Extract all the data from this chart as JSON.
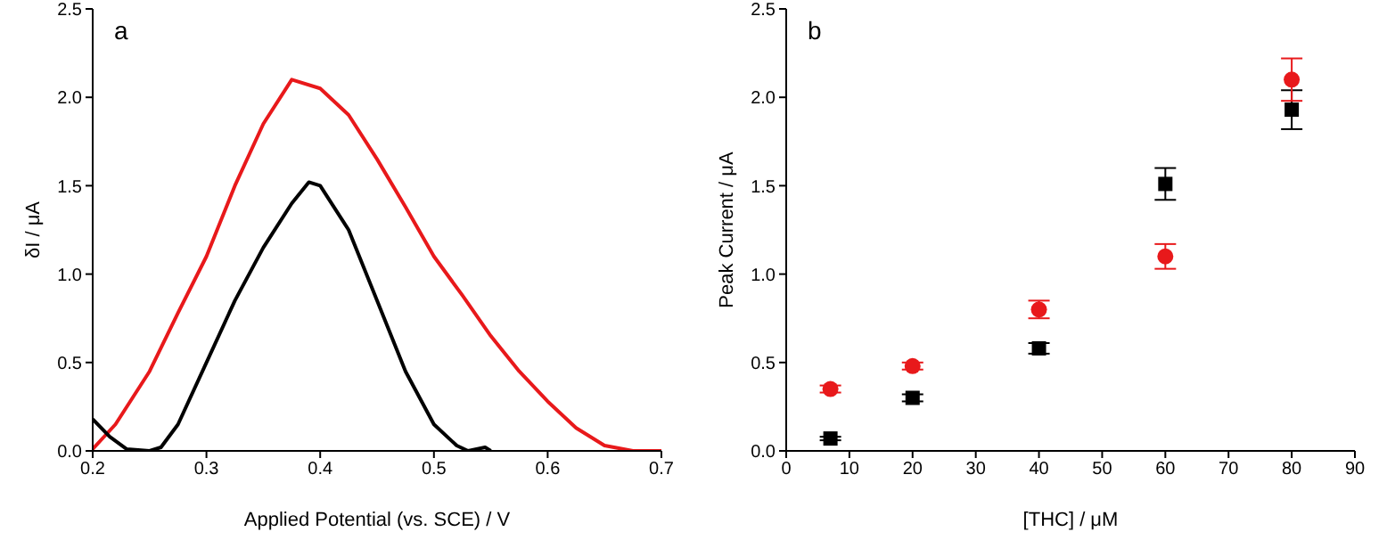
{
  "chart_data": [
    {
      "type": "line",
      "title": "a",
      "xlabel": "Applied Potential (vs. SCE) / V",
      "ylabel": "δI / μA",
      "marker": "none",
      "grid": false,
      "legend": false,
      "xlim": [
        0.2,
        0.7
      ],
      "xticks": [
        0.2,
        0.3,
        0.4,
        0.5,
        0.6,
        0.7
      ],
      "ylim": [
        0,
        2.5
      ],
      "yticks": [
        {
          "value": 0,
          "label": "0.0"
        },
        0.5,
        {
          "value": 1,
          "label": "1.0"
        },
        1.5,
        {
          "value": 2,
          "label": "2.0"
        },
        2.5
      ],
      "series": [
        {
          "color": "#e8191b",
          "x": [
            0.2,
            0.22,
            0.25,
            0.275,
            0.3,
            0.325,
            0.35,
            0.375,
            0.4,
            0.425,
            0.45,
            0.475,
            0.5,
            0.525,
            0.55,
            0.575,
            0.6,
            0.625,
            0.65,
            0.675,
            0.7
          ],
          "values": [
            0.01,
            0.15,
            0.45,
            0.78,
            1.1,
            1.5,
            1.85,
            2.1,
            2.05,
            1.9,
            1.65,
            1.38,
            1.1,
            0.88,
            0.65,
            0.45,
            0.28,
            0.13,
            0.03,
            0.0,
            0.0
          ]
        },
        {
          "color": "#000000",
          "x": [
            0.2,
            0.215,
            0.23,
            0.25,
            0.26,
            0.275,
            0.3,
            0.325,
            0.35,
            0.375,
            0.39,
            0.4,
            0.425,
            0.45,
            0.475,
            0.5,
            0.52,
            0.53,
            0.545,
            0.55
          ],
          "values": [
            0.18,
            0.08,
            0.01,
            0.0,
            0.02,
            0.15,
            0.5,
            0.85,
            1.15,
            1.4,
            1.52,
            1.5,
            1.25,
            0.85,
            0.45,
            0.15,
            0.03,
            0.0,
            0.02,
            0.0
          ]
        }
      ]
    },
    {
      "type": "scatter",
      "title": "b",
      "xlabel": "[THC] / μM",
      "ylabel": "Peak Current  / μA",
      "grid": false,
      "legend": false,
      "xlim": [
        0,
        90
      ],
      "xticks": [
        0,
        10,
        20,
        30,
        40,
        50,
        60,
        70,
        80,
        90
      ],
      "ylim": [
        0,
        2.5
      ],
      "yticks": [
        {
          "value": 0,
          "label": "0.0"
        },
        0.5,
        {
          "value": 1,
          "label": "1.0"
        },
        1.5,
        {
          "value": 2,
          "label": "2.0"
        },
        2.5
      ],
      "series": [
        {
          "color": "#000000",
          "marker": "square",
          "x": [
            7,
            20,
            40,
            60,
            80
          ],
          "values": [
            0.07,
            0.3,
            0.58,
            1.51,
            1.93
          ],
          "errors": [
            0.01,
            0.02,
            0.03,
            0.09,
            0.11
          ]
        },
        {
          "color": "#e8191b",
          "marker": "circle",
          "x": [
            7,
            20,
            40,
            60,
            80
          ],
          "values": [
            0.35,
            0.48,
            0.8,
            1.1,
            2.1
          ],
          "errors": [
            0.02,
            0.02,
            0.05,
            0.07,
            0.12
          ]
        }
      ]
    }
  ]
}
